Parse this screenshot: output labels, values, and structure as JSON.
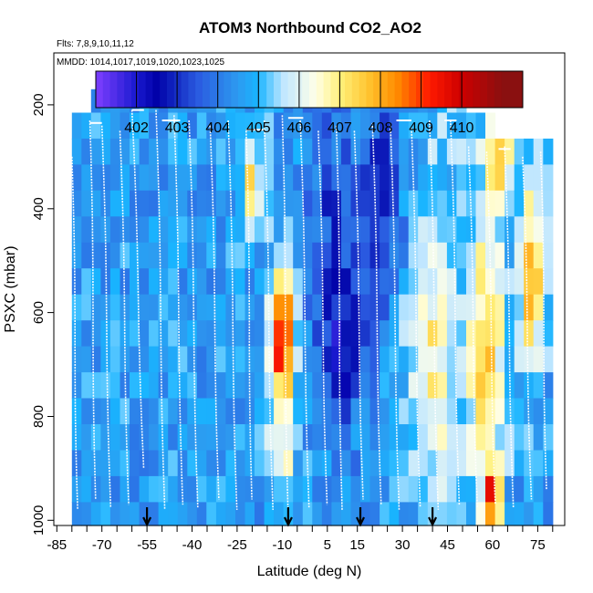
{
  "chart_data": {
    "type": "heatmap",
    "title": "ATOM3 Northbound CO2_AO2",
    "flights_label": "Flts: 7,8,9,10,11,12",
    "dates_label": "MMDD: 1014,1017,1019,1020,1023,1025",
    "xlabel": "Latitude (deg N)",
    "ylabel": "PSXC (mbar)",
    "xlim": [
      -86,
      84
    ],
    "ylim": [
      1010,
      100
    ],
    "x_ticks": [
      -85,
      -70,
      -55,
      -40,
      -25,
      -10,
      5,
      15,
      30,
      45,
      60,
      75
    ],
    "x_tick_labels": [
      "-85",
      "-70",
      "-55",
      "-40",
      "-25",
      "-10",
      "5",
      "15",
      "30",
      "45",
      "60",
      "75"
    ],
    "y_ticks": [
      200,
      400,
      600,
      800,
      1000
    ],
    "y_tick_labels": [
      "200",
      "400",
      "600",
      "800",
      "1000"
    ],
    "colorbar": {
      "min": 401,
      "max": 411.5,
      "ticks": [
        402,
        403,
        404,
        405,
        406,
        407,
        408,
        409,
        410
      ],
      "tick_labels": [
        "402",
        "403",
        "404",
        "405",
        "406",
        "407",
        "408",
        "409",
        "410"
      ],
      "stops": [
        {
          "v": 401.0,
          "color": "#7f3fff"
        },
        {
          "v": 402.0,
          "color": "#1a1ad0"
        },
        {
          "v": 402.5,
          "color": "#0000a8"
        },
        {
          "v": 403.5,
          "color": "#2a5ae0"
        },
        {
          "v": 404.5,
          "color": "#2d9bf0"
        },
        {
          "v": 405.0,
          "color": "#18b4ff"
        },
        {
          "v": 405.6,
          "color": "#bfe6ff"
        },
        {
          "v": 406.4,
          "color": "#ffffe8"
        },
        {
          "v": 407.0,
          "color": "#fff07a"
        },
        {
          "v": 407.7,
          "color": "#ffc430"
        },
        {
          "v": 408.4,
          "color": "#ff8c00"
        },
        {
          "v": 409.2,
          "color": "#ff1a00"
        },
        {
          "v": 410.0,
          "color": "#cc0000"
        },
        {
          "v": 411.0,
          "color": "#8a1010"
        }
      ]
    },
    "sample_latitudes": [
      -55,
      -8,
      16,
      40
    ],
    "bins": {
      "lat_start": -80,
      "lat_width": 3.2,
      "p_edges": [
        170,
        215,
        265,
        315,
        365,
        415,
        465,
        515,
        565,
        615,
        665,
        715,
        765,
        815,
        865,
        915,
        965,
        1010
      ]
    },
    "data_extent": [
      {
        "lat": -80,
        "top": 215,
        "bottom": 1000
      },
      {
        "lat": -72,
        "top": 170,
        "bottom": 1000
      },
      {
        "lat": -40,
        "top": 170,
        "bottom": 1000
      },
      {
        "lat": 30,
        "top": 170,
        "bottom": 1000
      },
      {
        "lat": 45,
        "top": 170,
        "bottom": 1000
      },
      {
        "lat": 52,
        "top": 215,
        "bottom": 1000
      },
      {
        "lat": 60,
        "top": 265,
        "bottom": 1000
      },
      {
        "lat": 78,
        "top": 265,
        "bottom": 1000
      }
    ],
    "co2_features": [
      {
        "lat": -80,
        "p": 600,
        "sig_lat": 30,
        "sig_p": 600,
        "amp": 0
      },
      {
        "lat": -10,
        "p": 650,
        "sig_lat": 3,
        "sig_p": 100,
        "amp": 4.8
      },
      {
        "lat": -20,
        "p": 350,
        "sig_lat": 3,
        "sig_p": 70,
        "amp": 2.3
      },
      {
        "lat": -10,
        "p": 880,
        "sig_lat": 3,
        "sig_p": 60,
        "amp": 1.8
      },
      {
        "lat": 5,
        "p": 380,
        "sig_lat": 5,
        "sig_p": 150,
        "amp": -1.0
      },
      {
        "lat": 10,
        "p": 650,
        "sig_lat": 6,
        "sig_p": 120,
        "amp": -2.0
      },
      {
        "lat": 22,
        "p": 350,
        "sig_lat": 6,
        "sig_p": 180,
        "amp": -1.4
      },
      {
        "lat": 40,
        "p": 700,
        "sig_lat": 6,
        "sig_p": 180,
        "amp": 2.2
      },
      {
        "lat": 58,
        "p": 700,
        "sig_lat": 4,
        "sig_p": 200,
        "amp": 3.2
      },
      {
        "lat": 60,
        "p": 960,
        "sig_lat": 2,
        "sig_p": 40,
        "amp": 3.5
      },
      {
        "lat": 73,
        "p": 520,
        "sig_lat": 3,
        "sig_p": 140,
        "amp": 3.2
      },
      {
        "lat": 62,
        "p": 300,
        "sig_lat": 3,
        "sig_p": 60,
        "amp": 3.0
      },
      {
        "lat": 48,
        "p": 260,
        "sig_lat": 10,
        "sig_p": 100,
        "amp": 0.6
      }
    ],
    "co2_base": 404.6,
    "flight_profiles": [
      {
        "lat": -80,
        "lat2": -78,
        "top": 300,
        "bottom": 980
      },
      {
        "lat": -74,
        "lat2": -72,
        "top": 230,
        "bottom": 960
      },
      {
        "lat": -70,
        "lat2": -67,
        "top": 240,
        "bottom": 975
      },
      {
        "lat": -64,
        "lat2": -61,
        "top": 250,
        "bottom": 970
      },
      {
        "lat": -60,
        "lat2": -56,
        "top": 210,
        "bottom": 900
      },
      {
        "lat": -52,
        "lat2": -49,
        "top": 210,
        "bottom": 980
      },
      {
        "lat": -46,
        "lat2": -43,
        "top": 220,
        "bottom": 970
      },
      {
        "lat": -41,
        "lat2": -38,
        "top": 230,
        "bottom": 975
      },
      {
        "lat": -34,
        "lat2": -31,
        "top": 240,
        "bottom": 960
      },
      {
        "lat": -28,
        "lat2": -25,
        "top": 230,
        "bottom": 980
      },
      {
        "lat": -22,
        "lat2": -20,
        "top": 250,
        "bottom": 960
      },
      {
        "lat": -16,
        "lat2": -13,
        "top": 230,
        "bottom": 980
      },
      {
        "lat": -10,
        "lat2": -8,
        "top": 220,
        "bottom": 980
      },
      {
        "lat": -4,
        "lat2": -1,
        "top": 230,
        "bottom": 975
      },
      {
        "lat": 2,
        "lat2": 5,
        "top": 250,
        "bottom": 970
      },
      {
        "lat": 8,
        "lat2": 10,
        "top": 240,
        "bottom": 980
      },
      {
        "lat": 14,
        "lat2": 17,
        "top": 250,
        "bottom": 960
      },
      {
        "lat": 20,
        "lat2": 23,
        "top": 235,
        "bottom": 970
      },
      {
        "lat": 26,
        "lat2": 29,
        "top": 240,
        "bottom": 980
      },
      {
        "lat": 33,
        "lat2": 36,
        "top": 245,
        "bottom": 975
      },
      {
        "lat": 39,
        "lat2": 42,
        "top": 230,
        "bottom": 980
      },
      {
        "lat": 46,
        "lat2": 49,
        "top": 230,
        "bottom": 970
      },
      {
        "lat": 52,
        "lat2": 55,
        "top": 280,
        "bottom": 975
      },
      {
        "lat": 58,
        "lat2": 61,
        "top": 290,
        "bottom": 970
      },
      {
        "lat": 64,
        "lat2": 67,
        "top": 280,
        "bottom": 975
      },
      {
        "lat": 70,
        "lat2": 73,
        "top": 300,
        "bottom": 960
      },
      {
        "lat": 76,
        "lat2": 78,
        "top": 290,
        "bottom": 940
      }
    ],
    "flight_legs": [
      {
        "lat": -74,
        "lat2": -70,
        "p": 235
      },
      {
        "lat": -60,
        "lat2": -56,
        "p": 210
      },
      {
        "lat": -50,
        "lat2": -44,
        "p": 230
      },
      {
        "lat": -22,
        "lat2": -16,
        "p": 248
      },
      {
        "lat": -8,
        "lat2": -3,
        "p": 225
      },
      {
        "lat": 28,
        "lat2": 33,
        "p": 230
      },
      {
        "lat": 44,
        "lat2": 48,
        "p": 230
      },
      {
        "lat": 62,
        "lat2": 66,
        "p": 285
      }
    ]
  }
}
